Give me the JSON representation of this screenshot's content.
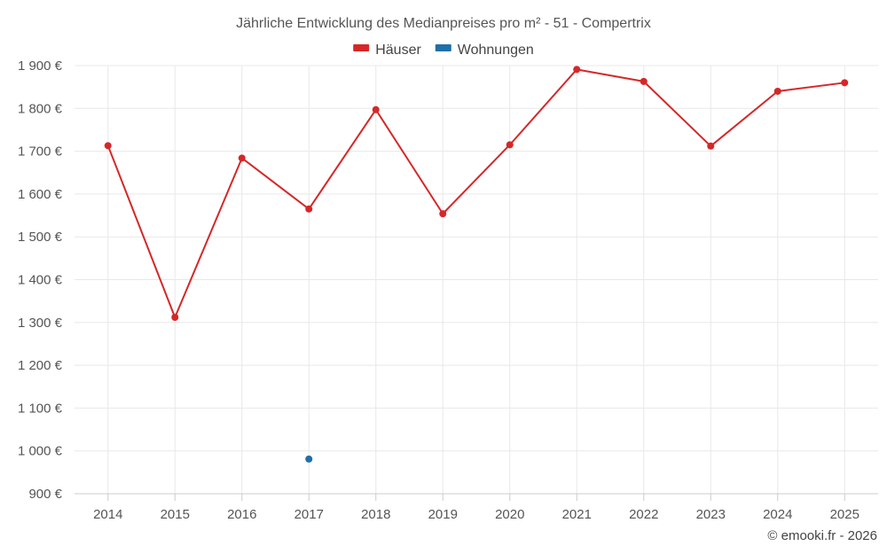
{
  "chart_data": {
    "type": "line",
    "title": "Jährliche Entwicklung des Medianpreises pro m² - 51 - Compertrix",
    "categories": [
      "2014",
      "2015",
      "2016",
      "2017",
      "2018",
      "2019",
      "2020",
      "2021",
      "2022",
      "2023",
      "2024",
      "2025"
    ],
    "series": [
      {
        "name": "Häuser",
        "color": "#d62728",
        "values": [
          1713,
          1312,
          1684,
          1565,
          1797,
          1554,
          1715,
          1891,
          1863,
          1712,
          1840,
          1860
        ]
      },
      {
        "name": "Wohnungen",
        "color": "#1f6fa8",
        "values": [
          null,
          null,
          null,
          981,
          null,
          null,
          null,
          null,
          null,
          null,
          null,
          null
        ]
      }
    ],
    "ylim": [
      900,
      1900
    ],
    "yticks": [
      900,
      1000,
      1100,
      1200,
      1300,
      1400,
      1500,
      1600,
      1700,
      1800,
      1900
    ],
    "ytick_labels": [
      "900 €",
      "1 000 €",
      "1 100 €",
      "1 200 €",
      "1 300 €",
      "1 400 €",
      "1 500 €",
      "1 600 €",
      "1 700 €",
      "1 800 €",
      "1 900 €"
    ],
    "grid": true,
    "legend_position": "top-center",
    "credit": "© emooki.fr - 2026"
  }
}
